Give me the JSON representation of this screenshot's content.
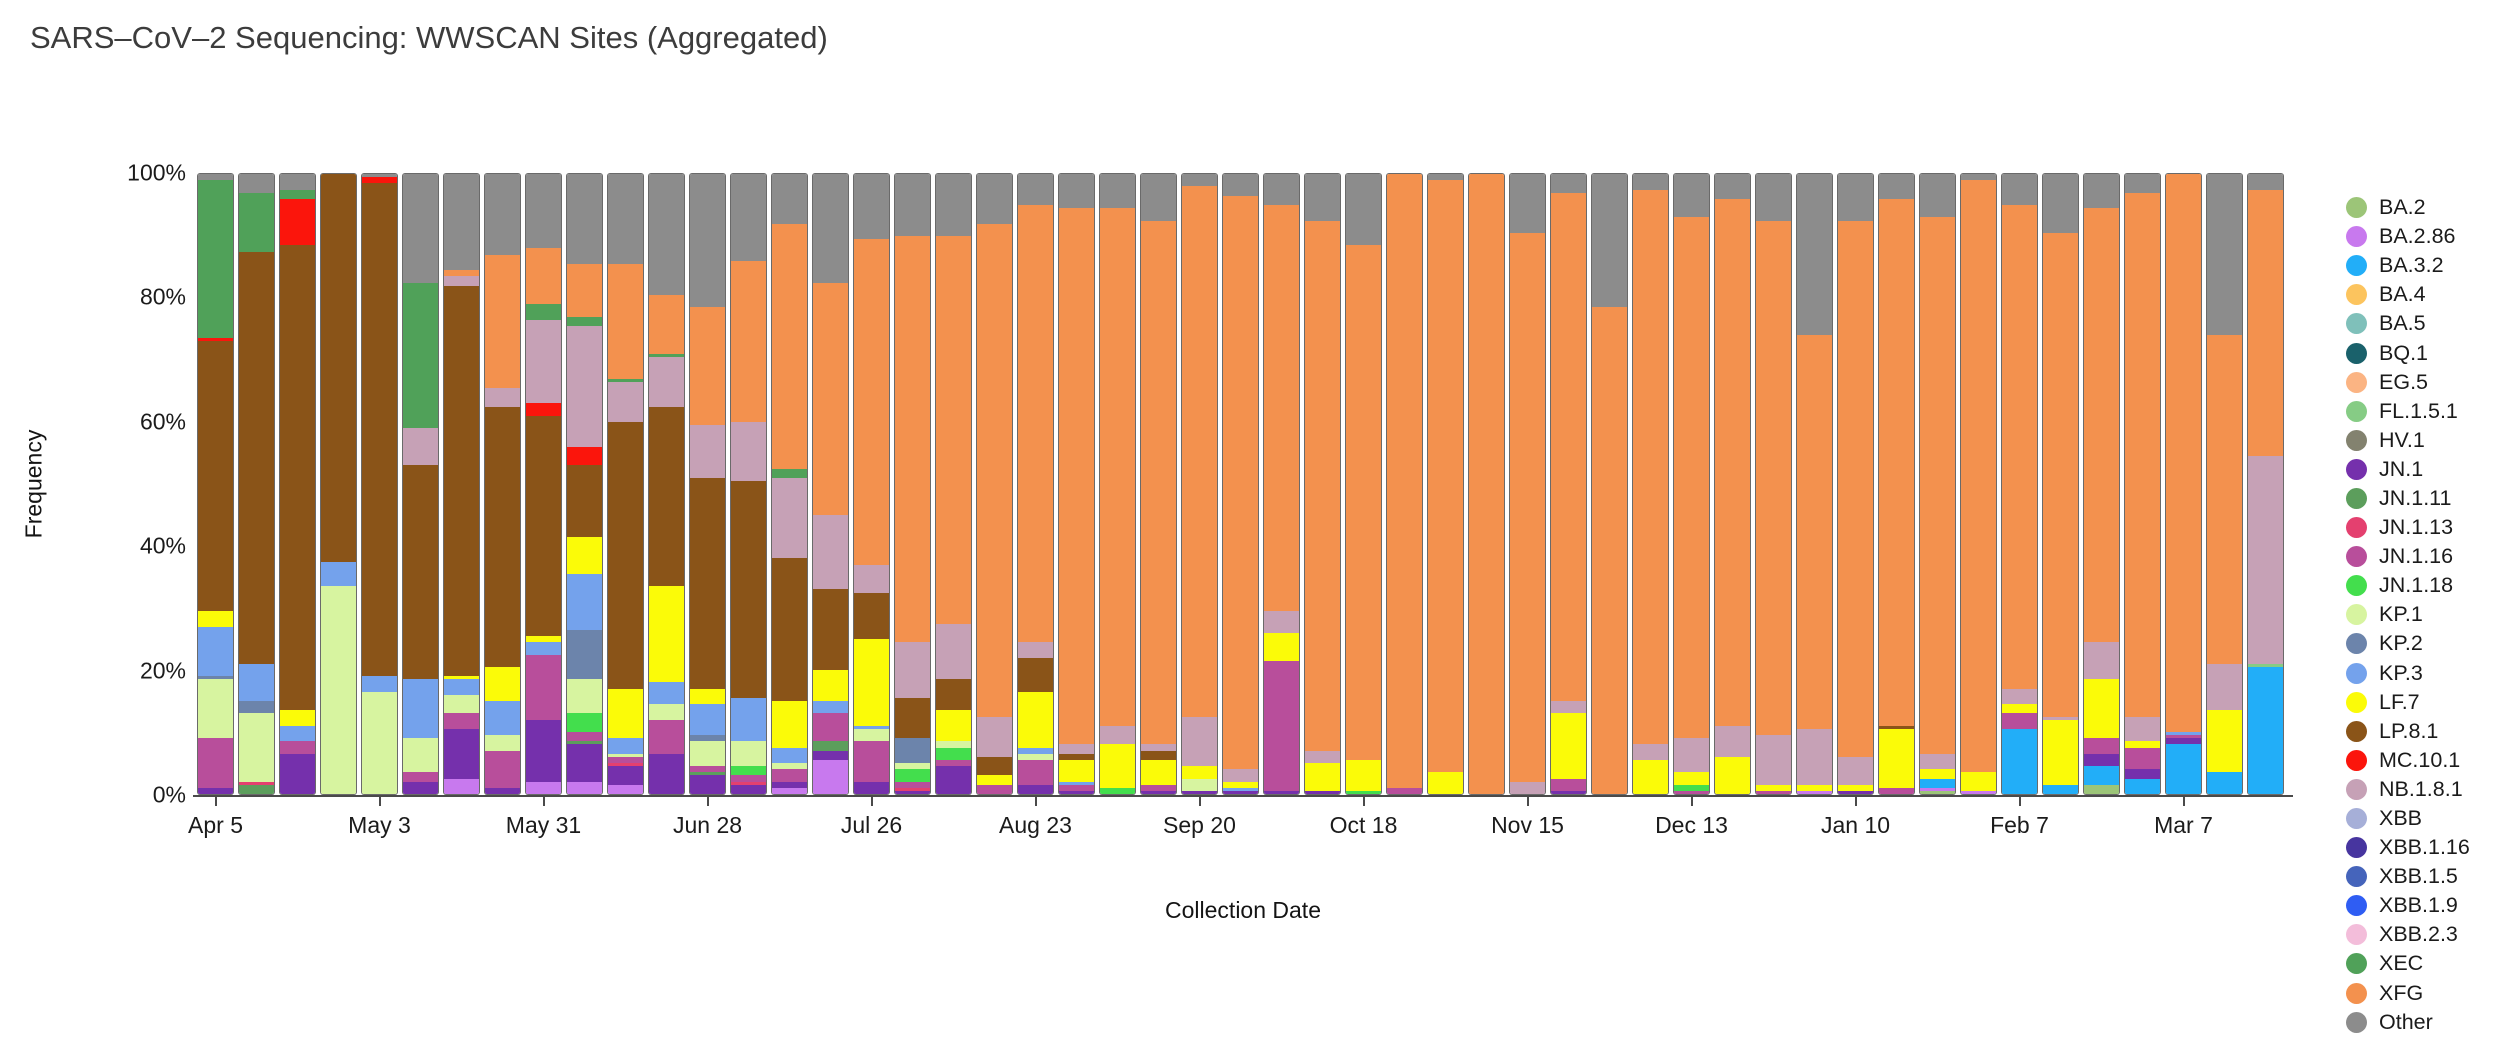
{
  "chart_data": {
    "type": "bar",
    "variant": "100-percent-stacked-weekly",
    "title": "SARS–CoV–2 Sequencing: WWSCAN Sites (Aggregated)",
    "xlabel": "Collection Date",
    "ylabel": "Frequency",
    "ylim": [
      0,
      100
    ],
    "grid": false,
    "legend_position": "right",
    "label_every_n_bars": 4,
    "y_ticks": [
      {
        "value": 0,
        "label": "0%"
      },
      {
        "value": 20,
        "label": "20%"
      },
      {
        "value": 40,
        "label": "40%"
      },
      {
        "value": 60,
        "label": "60%"
      },
      {
        "value": 80,
        "label": "80%"
      },
      {
        "value": 100,
        "label": "100%"
      }
    ],
    "x_labeled_ticks": [
      "Apr 5",
      "May 3",
      "May 31",
      "Jun 28",
      "Jul 26",
      "Aug 23",
      "Sep 20",
      "Oct 18",
      "Nov 15",
      "Dec 13",
      "Jan 10",
      "Feb 7",
      "Mar 7"
    ],
    "lineages": [
      {
        "name": "BA.2",
        "color": "#9CC578"
      },
      {
        "name": "BA.2.86",
        "color": "#C879EE"
      },
      {
        "name": "BA.3.2",
        "color": "#22AEF8"
      },
      {
        "name": "BA.4",
        "color": "#FCC45E"
      },
      {
        "name": "BA.5",
        "color": "#7FC0BA"
      },
      {
        "name": "BQ.1",
        "color": "#1A616B"
      },
      {
        "name": "EG.5",
        "color": "#FBB483"
      },
      {
        "name": "FL.1.5.1",
        "color": "#86CC85"
      },
      {
        "name": "HV.1",
        "color": "#83826F"
      },
      {
        "name": "JN.1",
        "color": "#7530AC"
      },
      {
        "name": "JN.1.11",
        "color": "#5C9E5C"
      },
      {
        "name": "JN.1.13",
        "color": "#E4406F"
      },
      {
        "name": "JN.1.16",
        "color": "#B84E9B"
      },
      {
        "name": "JN.1.18",
        "color": "#43DE4D"
      },
      {
        "name": "KP.1",
        "color": "#D7F4A0"
      },
      {
        "name": "KP.2",
        "color": "#6C84AB"
      },
      {
        "name": "KP.3",
        "color": "#74A2EC"
      },
      {
        "name": "LF.7",
        "color": "#FBFB08"
      },
      {
        "name": "LP.8.1",
        "color": "#8A5418"
      },
      {
        "name": "MC.10.1",
        "color": "#FB150C"
      },
      {
        "name": "NB.1.8.1",
        "color": "#C6A1B6"
      },
      {
        "name": "XBB",
        "color": "#A6AFD8"
      },
      {
        "name": "XBB.1.16",
        "color": "#47359F"
      },
      {
        "name": "XBB.1.5",
        "color": "#4564BB"
      },
      {
        "name": "XBB.1.9",
        "color": "#2F5DF3"
      },
      {
        "name": "XBB.2.3",
        "color": "#F3BDDA"
      },
      {
        "name": "XEC",
        "color": "#50A159"
      },
      {
        "name": "XFG",
        "color": "#F3914E"
      },
      {
        "name": "Other",
        "color": "#8C8C8C"
      }
    ],
    "weeks": [
      {
        "date": "Apr 5",
        "values": {
          "JN.1": 1,
          "JN.1.16": 8,
          "KP.1": 9.5,
          "KP.2": 0.5,
          "KP.3": 8,
          "LF.7": 2.5,
          "LP.8.1": 43.5,
          "MC.10.1": 0.5,
          "XEC": 25.5,
          "Other": 1
        }
      },
      {
        "date": "Apr 12",
        "values": {
          "JN.1.11": 1.5,
          "JN.1.13": 0.5,
          "KP.1": 11,
          "KP.2": 2,
          "KP.3": 6,
          "LP.8.1": 66.5,
          "XEC": 9.5,
          "Other": 3
        }
      },
      {
        "date": "Apr 19",
        "values": {
          "JN.1": 6.5,
          "JN.1.16": 2,
          "KP.3": 2.5,
          "LF.7": 2.5,
          "LP.8.1": 75,
          "MC.10.1": 7.5,
          "XEC": 1.5,
          "Other": 2.5
        }
      },
      {
        "date": "Apr 26",
        "values": {
          "KP.1": 33.5,
          "KP.3": 4,
          "LP.8.1": 62.5
        }
      },
      {
        "date": "May 3",
        "values": {
          "KP.1": 16.5,
          "KP.3": 2.5,
          "LP.8.1": 79.5,
          "MC.10.1": 1,
          "Other": 0.5
        }
      },
      {
        "date": "May 10",
        "values": {
          "JN.1": 2,
          "JN.1.16": 1.5,
          "KP.1": 5.5,
          "KP.3": 9.5,
          "LP.8.1": 34.5,
          "NB.1.8.1": 6,
          "XEC": 23.5,
          "Other": 17.5
        }
      },
      {
        "date": "May 17",
        "values": {
          "BA.2.86": 2.5,
          "JN.1": 8,
          "JN.1.16": 2.5,
          "KP.1": 3,
          "KP.3": 2.5,
          "LF.7": 0.5,
          "LP.8.1": 63,
          "NB.1.8.1": 1.5,
          "XFG": 1,
          "Other": 15.5
        }
      },
      {
        "date": "May 24",
        "values": {
          "JN.1": 1,
          "JN.1.16": 6,
          "KP.1": 2.5,
          "KP.3": 5.5,
          "LF.7": 5.5,
          "LP.8.1": 42,
          "NB.1.8.1": 3,
          "XFG": 21.5,
          "Other": 13
        }
      },
      {
        "date": "May 31",
        "values": {
          "BA.2.86": 2,
          "JN.1": 10,
          "JN.1.16": 10.5,
          "KP.3": 2,
          "LF.7": 1,
          "LP.8.1": 35.5,
          "MC.10.1": 2,
          "NB.1.8.1": 13.5,
          "XEC": 2.5,
          "XFG": 9,
          "Other": 12
        }
      },
      {
        "date": "Jun 7",
        "values": {
          "BA.2.86": 2,
          "JN.1": 6,
          "JN.1.11": 0.5,
          "JN.1.16": 1.5,
          "JN.1.18": 3,
          "KP.1": 5.5,
          "KP.2": 8,
          "KP.3": 9,
          "LF.7": 6,
          "LP.8.1": 11.5,
          "MC.10.1": 3,
          "NB.1.8.1": 19.5,
          "XEC": 1.5,
          "XFG": 8.5,
          "Other": 14.5
        }
      },
      {
        "date": "Jun 14",
        "values": {
          "BA.2.86": 1.5,
          "JN.1": 3,
          "JN.1.13": 0.5,
          "JN.1.16": 1,
          "KP.1": 0.5,
          "KP.3": 2.5,
          "LF.7": 8,
          "LP.8.1": 43,
          "NB.1.8.1": 6.5,
          "XEC": 0.5,
          "XFG": 18.5,
          "Other": 14.5
        }
      },
      {
        "date": "Jun 21",
        "values": {
          "JN.1": 6.5,
          "JN.1.16": 5.5,
          "KP.1": 2.5,
          "KP.3": 3.5,
          "LF.7": 15.5,
          "LP.8.1": 29,
          "NB.1.8.1": 8,
          "XEC": 0.5,
          "XFG": 9.5,
          "Other": 19.5
        }
      },
      {
        "date": "Jun 28",
        "values": {
          "JN.1": 3,
          "JN.1.11": 0.5,
          "JN.1.16": 1,
          "KP.1": 4,
          "KP.2": 1,
          "KP.3": 5,
          "LF.7": 2.5,
          "LP.8.1": 34,
          "NB.1.8.1": 8.5,
          "XFG": 19,
          "Other": 21.5
        }
      },
      {
        "date": "Jul 5",
        "values": {
          "JN.1": 1.5,
          "JN.1.13": 0.5,
          "JN.1.16": 1,
          "JN.1.18": 1.5,
          "KP.1": 4,
          "KP.3": 7,
          "LP.8.1": 35,
          "NB.1.8.1": 9.5,
          "XFG": 26,
          "Other": 14
        }
      },
      {
        "date": "Jul 12",
        "values": {
          "BA.2.86": 1,
          "JN.1": 1,
          "JN.1.16": 2,
          "KP.1": 1,
          "KP.3": 2.5,
          "LF.7": 7.5,
          "LP.8.1": 23,
          "NB.1.8.1": 13,
          "XEC": 1.5,
          "XFG": 39.5,
          "Other": 8
        }
      },
      {
        "date": "Jul 19",
        "values": {
          "BA.2.86": 5.5,
          "JN.1": 1.5,
          "JN.1.11": 1.5,
          "JN.1.16": 4.5,
          "KP.3": 2,
          "LF.7": 5,
          "LP.8.1": 13,
          "NB.1.8.1": 12,
          "XFG": 37.5,
          "Other": 17.5
        }
      },
      {
        "date": "Jul 26",
        "values": {
          "JN.1": 2,
          "JN.1.16": 6.5,
          "KP.1": 2,
          "KP.3": 0.5,
          "LF.7": 14,
          "LP.8.1": 7.5,
          "NB.1.8.1": 4.5,
          "XFG": 52.5,
          "Other": 10.5
        }
      },
      {
        "date": "Aug 2",
        "values": {
          "JN.1": 0.5,
          "JN.1.13": 0.5,
          "JN.1.16": 1,
          "JN.1.18": 2,
          "KP.1": 1,
          "KP.2": 4,
          "LP.8.1": 6.5,
          "NB.1.8.1": 9,
          "XFG": 65.5,
          "Other": 10
        }
      },
      {
        "date": "Aug 9",
        "values": {
          "JN.1": 4.5,
          "JN.1.16": 1,
          "JN.1.18": 2,
          "KP.1": 1,
          "LF.7": 5,
          "LP.8.1": 5,
          "NB.1.8.1": 9,
          "XFG": 62.5,
          "Other": 10
        }
      },
      {
        "date": "Aug 16",
        "values": {
          "JN.1.16": 1.5,
          "LF.7": 1.5,
          "LP.8.1": 3,
          "NB.1.8.1": 6.5,
          "XFG": 79.5,
          "Other": 8
        }
      },
      {
        "date": "Aug 23",
        "values": {
          "JN.1": 1.5,
          "JN.1.16": 4,
          "KP.1": 1,
          "KP.3": 1,
          "LF.7": 9,
          "LP.8.1": 5.5,
          "NB.1.8.1": 2.5,
          "XFG": 70.5,
          "Other": 5
        }
      },
      {
        "date": "Aug 30",
        "values": {
          "JN.1": 0.5,
          "JN.1.16": 1,
          "KP.3": 0.5,
          "LF.7": 3.5,
          "LP.8.1": 1,
          "NB.1.8.1": 1.5,
          "XFG": 86.5,
          "Other": 5.5
        }
      },
      {
        "date": "Sep 6",
        "values": {
          "JN.1.18": 1,
          "LF.7": 7,
          "NB.1.8.1": 3,
          "XFG": 83.5,
          "Other": 5.5
        }
      },
      {
        "date": "Sep 13",
        "values": {
          "JN.1": 0.5,
          "JN.1.16": 1,
          "LF.7": 4,
          "LP.8.1": 1.5,
          "NB.1.8.1": 1,
          "XFG": 84.5,
          "Other": 7.5
        }
      },
      {
        "date": "Sep 20",
        "values": {
          "JN.1": 0.5,
          "KP.1": 2,
          "LF.7": 2,
          "NB.1.8.1": 8,
          "XFG": 85.5,
          "Other": 2
        }
      },
      {
        "date": "Sep 27",
        "values": {
          "JN.1": 0.5,
          "KP.3": 0.5,
          "LF.7": 1,
          "NB.1.8.1": 2,
          "XFG": 92.5,
          "Other": 3.5
        }
      },
      {
        "date": "Oct 4",
        "values": {
          "JN.1": 0.5,
          "JN.1.16": 21,
          "LF.7": 4.5,
          "NB.1.8.1": 3.5,
          "XFG": 65.5,
          "Other": 5
        }
      },
      {
        "date": "Oct 11",
        "values": {
          "JN.1": 0.5,
          "LF.7": 4.5,
          "NB.1.8.1": 2,
          "XFG": 85.5,
          "Other": 7.5
        }
      },
      {
        "date": "Oct 18",
        "values": {
          "JN.1.18": 0.5,
          "LF.7": 5,
          "XFG": 83,
          "Other": 11.5
        }
      },
      {
        "date": "Oct 25",
        "values": {
          "JN.1.16": 1,
          "XFG": 99
        }
      },
      {
        "date": "Nov 1",
        "values": {
          "LF.7": 3.5,
          "XFG": 95.5,
          "Other": 1
        }
      },
      {
        "date": "Nov 8",
        "values": {
          "XFG": 100
        }
      },
      {
        "date": "Nov 15",
        "values": {
          "NB.1.8.1": 2,
          "XFG": 88.5,
          "Other": 9.5
        }
      },
      {
        "date": "Nov 22",
        "values": {
          "JN.1": 0.5,
          "JN.1.16": 2,
          "LF.7": 10.5,
          "NB.1.8.1": 2,
          "XFG": 82,
          "Other": 3
        }
      },
      {
        "date": "Nov 29",
        "values": {
          "XFG": 78.5,
          "Other": 21.5
        }
      },
      {
        "date": "Dec 6",
        "values": {
          "LF.7": 5.5,
          "NB.1.8.1": 2.5,
          "XFG": 89.5,
          "Other": 2.5
        }
      },
      {
        "date": "Dec 13",
        "values": {
          "JN.1.16": 0.5,
          "JN.1.18": 1,
          "LF.7": 2,
          "NB.1.8.1": 5.5,
          "XFG": 84,
          "Other": 7
        }
      },
      {
        "date": "Dec 20",
        "values": {
          "LF.7": 6,
          "NB.1.8.1": 5,
          "XFG": 85,
          "Other": 4
        }
      },
      {
        "date": "Dec 27",
        "values": {
          "JN.1.16": 0.5,
          "LF.7": 1,
          "NB.1.8.1": 8,
          "XFG": 83,
          "Other": 7.5
        }
      },
      {
        "date": "Jan 3",
        "values": {
          "BA.2.86": 0.5,
          "LF.7": 1,
          "NB.1.8.1": 9,
          "XFG": 63.5,
          "Other": 26
        }
      },
      {
        "date": "Jan 10",
        "values": {
          "JN.1": 0.5,
          "LF.7": 1,
          "NB.1.8.1": 4.5,
          "XFG": 86.5,
          "Other": 7.5
        }
      },
      {
        "date": "Jan 17",
        "values": {
          "JN.1.16": 1,
          "LF.7": 9.5,
          "LP.8.1": 0.5,
          "XFG": 85,
          "Other": 4
        }
      },
      {
        "date": "Jan 24",
        "values": {
          "BA.2": 0.5,
          "BA.2.86": 0.5,
          "BA.3.2": 1.5,
          "LF.7": 1.5,
          "NB.1.8.1": 2.5,
          "XFG": 86.5,
          "Other": 7
        }
      },
      {
        "date": "Jan 31",
        "values": {
          "BA.2.86": 0.5,
          "LF.7": 3,
          "XFG": 95.5,
          "Other": 1
        }
      },
      {
        "date": "Feb 7",
        "values": {
          "BA.3.2": 10.5,
          "JN.1.16": 2.5,
          "LF.7": 1.5,
          "NB.1.8.1": 2.5,
          "XFG": 78,
          "Other": 5
        }
      },
      {
        "date": "Feb 14",
        "values": {
          "BA.3.2": 1.5,
          "LF.7": 10.5,
          "NB.1.8.1": 0.5,
          "XFG": 78,
          "Other": 9.5
        }
      },
      {
        "date": "Feb 21",
        "values": {
          "BA.2": 1.5,
          "BA.3.2": 3,
          "JN.1": 2,
          "JN.1.16": 2.5,
          "LF.7": 9.5,
          "NB.1.8.1": 6,
          "XFG": 70,
          "Other": 5.5
        }
      },
      {
        "date": "Feb 28",
        "values": {
          "BA.3.2": 2.5,
          "JN.1": 1.5,
          "JN.1.16": 3.5,
          "LF.7": 1,
          "NB.1.8.1": 4,
          "XFG": 84.5,
          "Other": 3
        }
      },
      {
        "date": "Mar 7",
        "values": {
          "BA.3.2": 8,
          "JN.1": 1,
          "JN.1.16": 0.5,
          "KP.3": 0.5,
          "XFG": 90
        }
      },
      {
        "date": "Mar 14",
        "values": {
          "BA.3.2": 3.5,
          "LF.7": 10,
          "NB.1.8.1": 7.5,
          "XFG": 53,
          "Other": 26
        }
      },
      {
        "date": "Mar 21",
        "values": {
          "BA.3.2": 20.5,
          "FL.1.5.1": 0.5,
          "NB.1.8.1": 33.5,
          "XFG": 43,
          "Other": 2.5
        }
      }
    ]
  }
}
